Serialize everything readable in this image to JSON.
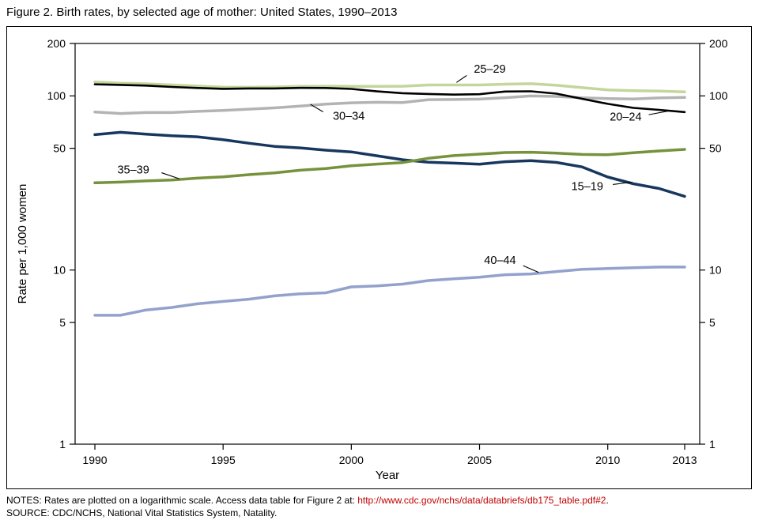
{
  "figure": {
    "title": "Figure 2. Birth rates, by selected age of mother: United States, 1990–2013",
    "notes_prefix": "NOTES: Rates are plotted on a logarithmic scale. Access data table for Figure 2 at: ",
    "notes_link": "http://www.cdc.gov/nchs/data/databriefs/db175_table.pdf#2",
    "notes_suffix": ".",
    "source": "SOURCE: CDC/NCHS, National Vital Statistics System, Natality.",
    "link_color": "#c00000"
  },
  "chart_data": {
    "type": "line",
    "title": "Figure 2. Birth rates, by selected age of mother: United States, 1990–2013",
    "xlabel": "Year",
    "ylabel": "Rate per 1,000 women",
    "y_scale": "log",
    "ylim": [
      1,
      200
    ],
    "xlim": [
      1990,
      2013
    ],
    "grid": false,
    "legend": "none (direct line annotations)",
    "yticks": [
      200,
      100,
      50,
      10,
      5,
      1
    ],
    "xticks": [
      1990,
      1995,
      2000,
      2005,
      2010,
      2013
    ],
    "x": [
      1990,
      1991,
      1992,
      1993,
      1994,
      1995,
      1996,
      1997,
      1998,
      1999,
      2000,
      2001,
      2002,
      2003,
      2004,
      2005,
      2006,
      2007,
      2008,
      2009,
      2010,
      2011,
      2012,
      2013
    ],
    "series": [
      {
        "name": "25–29",
        "color": "#c3d69b",
        "width": 3.5,
        "values": [
          120.2,
          118.2,
          117.4,
          115.5,
          113.9,
          112.2,
          112.1,
          112.4,
          113.5,
          113.6,
          113.5,
          113.4,
          113.6,
          115.6,
          115.5,
          115.5,
          116.7,
          117.5,
          115.1,
          111.5,
          108.3,
          107.2,
          106.5,
          105.5
        ]
      },
      {
        "name": "30–34",
        "color": "#b3b3b3",
        "width": 3.5,
        "values": [
          80.8,
          79.2,
          80.2,
          80.2,
          81.5,
          82.5,
          83.9,
          85.3,
          87.4,
          89.6,
          91.2,
          91.9,
          91.5,
          95.1,
          95.3,
          95.8,
          97.7,
          99.9,
          99.3,
          97.5,
          96.5,
          96.0,
          97.3,
          98.0
        ]
      },
      {
        "name": "20–24",
        "color": "#000000",
        "width": 2.6,
        "values": [
          116.5,
          115.7,
          114.6,
          112.6,
          111.1,
          109.8,
          110.4,
          110.4,
          111.2,
          111.0,
          109.7,
          106.2,
          103.6,
          102.6,
          101.7,
          102.2,
          105.9,
          106.3,
          103.0,
          96.2,
          90.0,
          85.3,
          83.1,
          80.7
        ]
      },
      {
        "name": "15–19",
        "color": "#17375e",
        "width": 3.5,
        "values": [
          59.9,
          61.8,
          60.3,
          59.0,
          58.2,
          56.0,
          53.5,
          51.3,
          50.3,
          48.8,
          47.7,
          45.3,
          43.0,
          41.6,
          41.1,
          40.5,
          41.9,
          42.5,
          41.5,
          39.1,
          34.2,
          31.3,
          29.4,
          26.5
        ]
      },
      {
        "name": "35–39",
        "color": "#76923c",
        "width": 3.5,
        "values": [
          31.7,
          32.0,
          32.5,
          32.9,
          33.7,
          34.3,
          35.3,
          36.1,
          37.4,
          38.3,
          39.7,
          40.6,
          41.4,
          43.8,
          45.4,
          46.3,
          47.3,
          47.5,
          46.9,
          46.1,
          45.9,
          47.2,
          48.3,
          49.3
        ]
      },
      {
        "name": "40–44",
        "color": "#93a1cc",
        "width": 3.5,
        "values": [
          5.5,
          5.5,
          5.9,
          6.1,
          6.4,
          6.6,
          6.8,
          7.1,
          7.3,
          7.4,
          8.0,
          8.1,
          8.3,
          8.7,
          8.9,
          9.1,
          9.4,
          9.5,
          9.8,
          10.1,
          10.2,
          10.3,
          10.4,
          10.4
        ]
      }
    ],
    "annotations": [
      {
        "label": "25–29",
        "x": 2005.4,
        "y": 143,
        "line": {
          "x1": 2004.5,
          "y1": 131,
          "x2": 2004.1,
          "y2": 119.5
        }
      },
      {
        "label": "30–34",
        "x": 1999.9,
        "y": 77,
        "line": {
          "x1": 1998.9,
          "y1": 81,
          "x2": 1998.4,
          "y2": 89.5
        }
      },
      {
        "label": "20–24",
        "x": 2010.7,
        "y": 76,
        "line": {
          "x1": 2011.6,
          "y1": 78,
          "x2": 2012.45,
          "y2": 82.3
        }
      },
      {
        "label": "35–39",
        "x": 1991.5,
        "y": 37.8,
        "line": {
          "x1": 1992.6,
          "y1": 36.2,
          "x2": 1993.3,
          "y2": 33.4
        }
      },
      {
        "label": "15–19",
        "x": 2009.2,
        "y": 30.3,
        "line": {
          "x1": 2010.2,
          "y1": 31,
          "x2": 2010.95,
          "y2": 32
        }
      },
      {
        "label": "40–44",
        "x": 2005.8,
        "y": 11.4,
        "line": {
          "x1": 2006.7,
          "y1": 10.6,
          "x2": 2007.3,
          "y2": 9.7
        }
      }
    ]
  }
}
